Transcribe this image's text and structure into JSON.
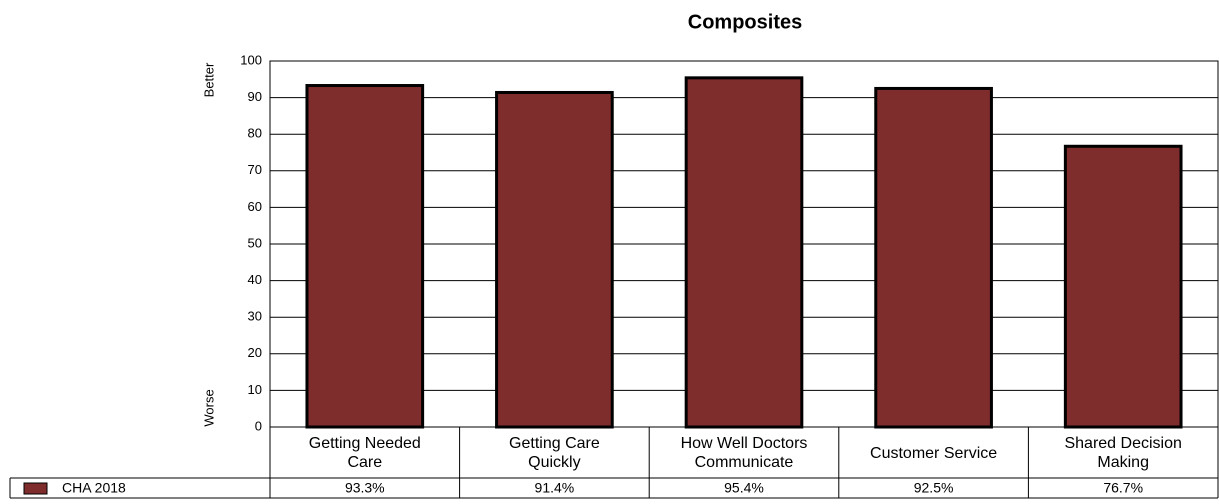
{
  "chart_data": {
    "type": "bar",
    "title": "Composites",
    "y_axis_labels": {
      "top": "Better",
      "bottom": "Worse"
    },
    "categories": [
      "Getting Needed Care",
      "Getting Care Quickly",
      "How Well Doctors Communicate",
      "Customer Service",
      "Shared Decision Making"
    ],
    "series": [
      {
        "name": "CHA 2018",
        "color": "#7f2c2c",
        "values": [
          93.3,
          91.4,
          95.4,
          92.5,
          76.7
        ],
        "value_labels": [
          "93.3%",
          "91.4%",
          "95.4%",
          "92.5%",
          "76.7%"
        ]
      }
    ],
    "ylim": [
      0,
      100
    ],
    "yticks": [
      0,
      10,
      20,
      30,
      40,
      50,
      60,
      70,
      80,
      90,
      100
    ],
    "grid": true
  }
}
